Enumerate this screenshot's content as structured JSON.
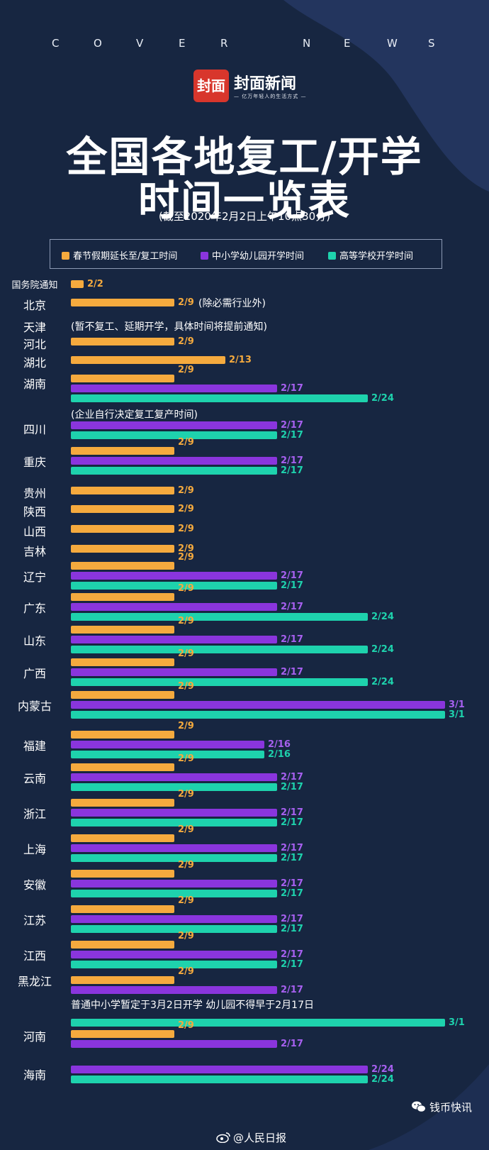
{
  "header": {
    "cover_letters": [
      "C",
      "O",
      "V",
      "E",
      "R",
      "N",
      "E",
      "W",
      "S"
    ],
    "logo_mark": "封面",
    "logo_name": "封面新闻",
    "logo_slogan": "— 亿万年轻人的生活方式 —"
  },
  "colors": {
    "background": "#172641",
    "spring": "#f5aa3e",
    "primary": "#8a35dd",
    "college": "#1ed2ad"
  },
  "chart_data": {
    "type": "bar",
    "orientation": "horizontal",
    "title": "全国各地复工/开学时间一览表",
    "title_lines": [
      "全国各地复工/开学",
      "时间一览表"
    ],
    "subtitle": "(截至2020年2月2日上午10点30分)",
    "legend": [
      "春节假期延长至/复工时间",
      "中小学幼儿园开学时间",
      "高等学校开学时间"
    ],
    "legend_placement": "top",
    "axis_unit": "days from 2020-02-01",
    "series": [
      {
        "key": "spring",
        "name": "春节假期延长至/复工时间"
      },
      {
        "key": "primary",
        "name": "中小学幼儿园开学时间"
      },
      {
        "key": "college",
        "name": "高等学校开学时间"
      }
    ],
    "regions": [
      {
        "name": "国务院通知",
        "small": true,
        "spring": "2/2"
      },
      {
        "name": "北京",
        "spring": "2/9",
        "note": "(除必需行业外)"
      },
      {
        "name": "天津",
        "note": "(暂不复工、延期开学，具体时间将提前通知)"
      },
      {
        "name": "河北",
        "spring": "2/9"
      },
      {
        "name": "湖北",
        "spring": "2/13"
      },
      {
        "name": "湖南",
        "spring": "2/9",
        "primary": "2/17",
        "college": "2/24"
      },
      {
        "name": "四川",
        "note_above": "(企业自行决定复工复产时间)",
        "primary": "2/17",
        "college": "2/17"
      },
      {
        "name": "重庆",
        "spring": "2/9",
        "primary": "2/17",
        "college": "2/17"
      },
      {
        "name": "贵州",
        "spring": "2/9"
      },
      {
        "name": "陕西",
        "spring": "2/9"
      },
      {
        "name": "山西",
        "spring": "2/9"
      },
      {
        "name": "吉林",
        "spring": "2/9"
      },
      {
        "name": "辽宁",
        "spring": "2/9",
        "primary": "2/17",
        "college": "2/17"
      },
      {
        "name": "广东",
        "spring": "2/9",
        "primary": "2/17",
        "college": "2/24"
      },
      {
        "name": "山东",
        "spring": "2/9",
        "primary": "2/17",
        "college": "2/24"
      },
      {
        "name": "广西",
        "spring": "2/9",
        "primary": "2/17",
        "college": "2/24"
      },
      {
        "name": "内蒙古",
        "spring": "2/9",
        "primary": "3/1",
        "college": "3/1"
      },
      {
        "name": "福建",
        "spring": "2/9",
        "primary": "2/16",
        "college": "2/16"
      },
      {
        "name": "云南",
        "spring": "2/9",
        "primary": "2/17",
        "college": "2/17"
      },
      {
        "name": "浙江",
        "spring": "2/9",
        "primary": "2/17",
        "college": "2/17"
      },
      {
        "name": "上海",
        "spring": "2/9",
        "primary": "2/17",
        "college": "2/17"
      },
      {
        "name": "安徽",
        "spring": "2/9",
        "primary": "2/17",
        "college": "2/17"
      },
      {
        "name": "江苏",
        "spring": "2/9",
        "primary": "2/17",
        "college": "2/17"
      },
      {
        "name": "江西",
        "spring": "2/9",
        "primary": "2/17",
        "college": "2/17"
      },
      {
        "name": "黑龙江",
        "spring": "2/9",
        "primary": "2/17",
        "note_below": "普通中小学暂定于3月2日开学 幼儿园不得早于2月17日",
        "college": "3/1"
      },
      {
        "name": "河南",
        "spring": "2/9",
        "primary": "2/17"
      },
      {
        "name": "海南",
        "primary": "2/24",
        "college": "2/24"
      }
    ]
  },
  "footer": {
    "source": "@人民日报",
    "brand": "钱币快讯"
  }
}
